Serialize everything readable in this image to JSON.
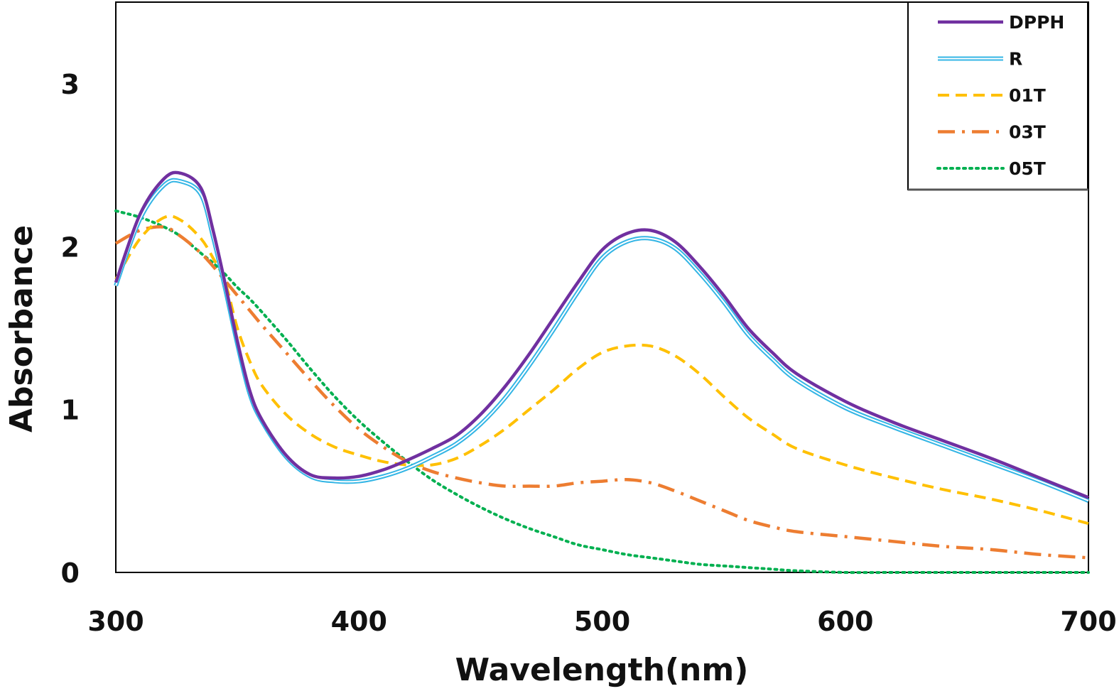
{
  "chart_data": {
    "type": "line",
    "title": "",
    "xlabel": "Wavelength(nm)",
    "ylabel": "Absorbance",
    "xlim": [
      300,
      700
    ],
    "ylim": [
      0,
      3.0
    ],
    "xticks": [
      300,
      400,
      500,
      600,
      700
    ],
    "xtick_labels": [
      "300",
      "400",
      "500",
      "600",
      "700"
    ],
    "yticks": [
      0,
      1,
      2,
      3
    ],
    "ytick_labels": [
      "0",
      "1",
      "2",
      "3"
    ],
    "grid": false,
    "legend_position": "top-right",
    "x": [
      300,
      310,
      320,
      327,
      335,
      340,
      345,
      350,
      355,
      360,
      370,
      380,
      390,
      400,
      410,
      420,
      430,
      440,
      450,
      460,
      470,
      480,
      490,
      500,
      510,
      520,
      530,
      540,
      550,
      560,
      570,
      580,
      600,
      620,
      640,
      660,
      680,
      700
    ],
    "series": [
      {
        "name": "DPPH",
        "color": "#7030a0",
        "style": "solid",
        "values": [
          1.78,
          2.2,
          2.42,
          2.45,
          2.36,
          2.1,
          1.77,
          1.42,
          1.12,
          0.94,
          0.72,
          0.6,
          0.58,
          0.59,
          0.63,
          0.69,
          0.76,
          0.84,
          0.97,
          1.14,
          1.34,
          1.56,
          1.78,
          1.98,
          2.08,
          2.1,
          2.03,
          1.88,
          1.7,
          1.5,
          1.35,
          1.22,
          1.05,
          0.92,
          0.81,
          0.7,
          0.58,
          0.46
        ]
      },
      {
        "name": "R",
        "color": "#33b5e5",
        "style": "double",
        "values": [
          1.76,
          2.17,
          2.38,
          2.4,
          2.32,
          2.06,
          1.74,
          1.4,
          1.1,
          0.93,
          0.71,
          0.59,
          0.56,
          0.56,
          0.59,
          0.64,
          0.71,
          0.79,
          0.91,
          1.07,
          1.27,
          1.49,
          1.72,
          1.93,
          2.03,
          2.05,
          1.99,
          1.84,
          1.66,
          1.46,
          1.31,
          1.18,
          1.01,
          0.89,
          0.78,
          0.67,
          0.56,
          0.44
        ]
      },
      {
        "name": "01T",
        "color": "#ffc000",
        "style": "dashed",
        "values": [
          1.8,
          2.05,
          2.18,
          2.16,
          2.05,
          1.93,
          1.78,
          1.5,
          1.3,
          1.15,
          0.97,
          0.85,
          0.77,
          0.72,
          0.68,
          0.66,
          0.66,
          0.7,
          0.78,
          0.88,
          1.0,
          1.12,
          1.25,
          1.35,
          1.39,
          1.39,
          1.33,
          1.22,
          1.08,
          0.95,
          0.85,
          0.76,
          0.66,
          0.58,
          0.51,
          0.45,
          0.38,
          0.3
        ]
      },
      {
        "name": "03T",
        "color": "#ed7d31",
        "style": "dash-dot",
        "values": [
          2.02,
          2.1,
          2.12,
          2.06,
          1.96,
          1.88,
          1.79,
          1.7,
          1.61,
          1.52,
          1.35,
          1.18,
          1.02,
          0.88,
          0.77,
          0.68,
          0.62,
          0.58,
          0.55,
          0.53,
          0.53,
          0.53,
          0.55,
          0.56,
          0.57,
          0.55,
          0.5,
          0.44,
          0.38,
          0.32,
          0.28,
          0.25,
          0.22,
          0.19,
          0.16,
          0.14,
          0.11,
          0.09
        ]
      },
      {
        "name": "05T",
        "color": "#00b050",
        "style": "dotted",
        "values": [
          2.22,
          2.18,
          2.12,
          2.06,
          1.96,
          1.9,
          1.83,
          1.75,
          1.68,
          1.6,
          1.43,
          1.25,
          1.08,
          0.93,
          0.8,
          0.68,
          0.57,
          0.48,
          0.4,
          0.33,
          0.27,
          0.22,
          0.17,
          0.14,
          0.11,
          0.09,
          0.07,
          0.05,
          0.04,
          0.03,
          0.02,
          0.01,
          0.0,
          0.0,
          0.0,
          0.0,
          0.0,
          0.0
        ]
      }
    ]
  }
}
